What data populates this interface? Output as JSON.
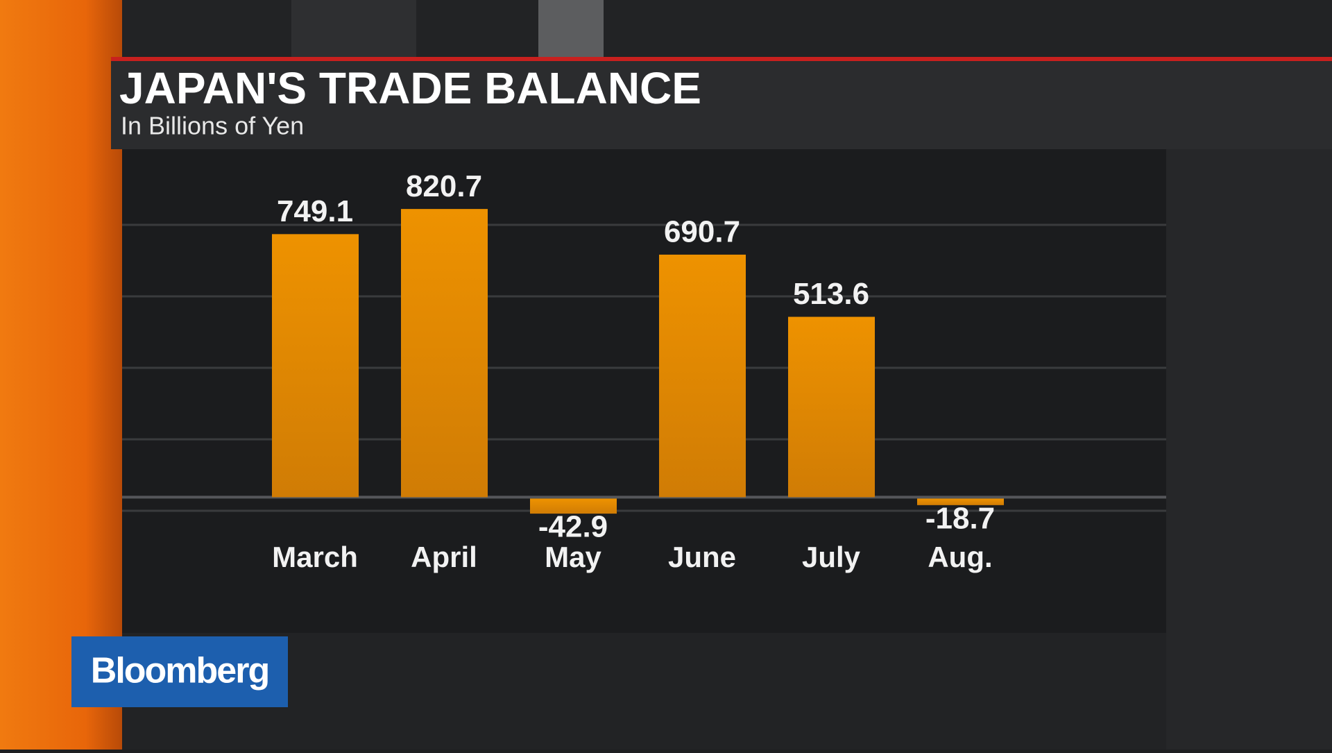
{
  "chart_data": {
    "type": "bar",
    "title": "JAPAN'S TRADE BALANCE",
    "subtitle": "In Billions of Yen",
    "categories": [
      "March",
      "April",
      "May",
      "June",
      "July",
      "Aug."
    ],
    "values": [
      749.1,
      820.7,
      -42.9,
      690.7,
      513.6,
      -18.7
    ],
    "color": "#e88e00",
    "ylim": [
      -100,
      900
    ]
  },
  "logo": "Bloomberg"
}
